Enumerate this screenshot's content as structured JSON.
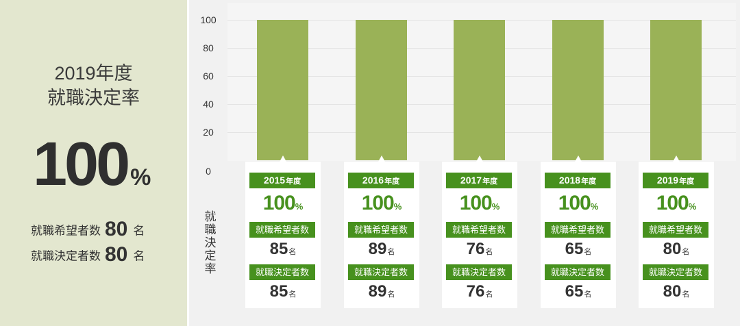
{
  "summary": {
    "year": "2019年度",
    "label": "就職決定率",
    "rate": "100",
    "rate_unit": "%",
    "applicants_label": "就職希望者数",
    "applicants": "80",
    "decided_label": "就職決定者数",
    "decided": "80",
    "count_unit": "名"
  },
  "chart_data": {
    "type": "bar",
    "categories": [
      "2015年度",
      "2016年度",
      "2017年度",
      "2018年度",
      "2019年度"
    ],
    "values": [
      100,
      100,
      100,
      100,
      100
    ],
    "ylabel": "就職決定率",
    "ylim": [
      0,
      100
    ],
    "yticks": [
      "100",
      "80",
      "60",
      "40",
      "20",
      "0"
    ],
    "grid": true,
    "bar_color": "#9ab257"
  },
  "cards": [
    {
      "year": "2015",
      "year_unit": "年度",
      "rate": "100",
      "rate_unit": "%",
      "applicants_label": "就職希望者数",
      "applicants": "85",
      "decided_label": "就職決定者数",
      "decided": "85",
      "count_unit": "名"
    },
    {
      "year": "2016",
      "year_unit": "年度",
      "rate": "100",
      "rate_unit": "%",
      "applicants_label": "就職希望者数",
      "applicants": "89",
      "decided_label": "就職決定者数",
      "decided": "89",
      "count_unit": "名"
    },
    {
      "year": "2017",
      "year_unit": "年度",
      "rate": "100",
      "rate_unit": "%",
      "applicants_label": "就職希望者数",
      "applicants": "76",
      "decided_label": "就職決定者数",
      "decided": "76",
      "count_unit": "名"
    },
    {
      "year": "2018",
      "year_unit": "年度",
      "rate": "100",
      "rate_unit": "%",
      "applicants_label": "就職希望者数",
      "applicants": "65",
      "decided_label": "就職決定者数",
      "decided": "65",
      "count_unit": "名"
    },
    {
      "year": "2019",
      "year_unit": "年度",
      "rate": "100",
      "rate_unit": "%",
      "applicants_label": "就職希望者数",
      "applicants": "80",
      "decided_label": "就職決定者数",
      "decided": "80",
      "count_unit": "名"
    }
  ],
  "colors": {
    "accent": "#47911e",
    "panel": "#e3e7cf"
  }
}
